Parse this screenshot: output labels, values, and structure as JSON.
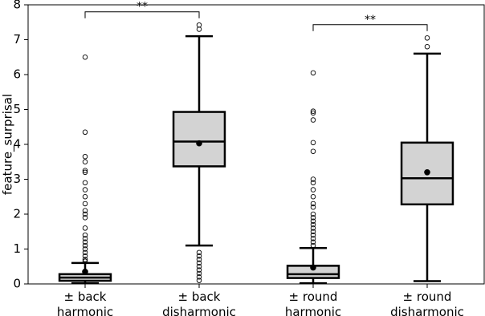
{
  "chart_data": {
    "type": "box",
    "y_label": "feature_surprisal",
    "categories": [
      "± back\nharmonic",
      "± back\ndisharmonic",
      "± round\nharmonic",
      "± round\ndisharmonic"
    ],
    "boxes": [
      {
        "low": 0.02,
        "q1": 0.09,
        "median": 0.18,
        "q3": 0.28,
        "high": 0.6,
        "mean": 0.35,
        "outliers": [
          0.65,
          0.7,
          0.8,
          0.9,
          1.0,
          1.1,
          1.2,
          1.3,
          1.4,
          1.6,
          1.9,
          2.0,
          2.1,
          2.3,
          2.5,
          2.7,
          2.9,
          3.2,
          3.25,
          3.5,
          3.65,
          4.35,
          6.5
        ]
      },
      {
        "low": 1.1,
        "q1": 3.37,
        "median": 4.08,
        "q3": 4.93,
        "high": 7.1,
        "mean": 4.03,
        "outliers": [
          0.1,
          0.2,
          0.3,
          0.4,
          0.5,
          0.6,
          0.7,
          0.8,
          0.9,
          7.3,
          7.42
        ]
      },
      {
        "low": 0.02,
        "q1": 0.17,
        "median": 0.28,
        "q3": 0.52,
        "high": 1.03,
        "mean": 0.47,
        "outliers": [
          1.1,
          1.2,
          1.3,
          1.4,
          1.5,
          1.6,
          1.7,
          1.8,
          1.9,
          2.0,
          2.2,
          2.3,
          2.5,
          2.7,
          2.9,
          3.0,
          3.8,
          4.05,
          4.7,
          4.9,
          4.95,
          6.05
        ]
      },
      {
        "low": 0.08,
        "q1": 2.28,
        "median": 3.03,
        "q3": 4.05,
        "high": 6.6,
        "mean": 3.2,
        "outliers": [
          6.8,
          7.05
        ]
      }
    ],
    "color": "#d3d3d3",
    "ylim": [
      0,
      8
    ],
    "yticks": [
      0,
      1,
      2,
      3,
      4,
      5,
      6,
      7,
      8
    ],
    "annotations": [
      {
        "text": "**",
        "between": [
          0,
          1
        ],
        "y": 7.8
      },
      {
        "text": "**",
        "between": [
          2,
          3
        ],
        "y": 7.43
      }
    ]
  }
}
